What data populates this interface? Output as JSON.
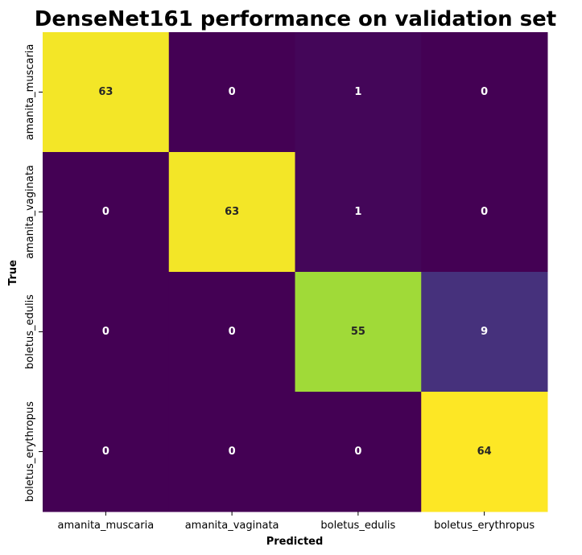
{
  "chart_data": {
    "type": "heatmap",
    "title": "DenseNet161 performance on validation set",
    "xlabel": "Predicted",
    "ylabel": "True",
    "x_categories": [
      "amanita_muscaria",
      "amanita_vaginata",
      "boletus_edulis",
      "boletus_erythropus"
    ],
    "y_categories": [
      "amanita_muscaria",
      "amanita_vaginata",
      "boletus_edulis",
      "boletus_erythropus"
    ],
    "values": [
      [
        63,
        0,
        1,
        0
      ],
      [
        0,
        63,
        1,
        0
      ],
      [
        0,
        0,
        55,
        9
      ],
      [
        0,
        0,
        0,
        64
      ]
    ],
    "value_range": [
      0,
      64
    ],
    "colormap": "viridis",
    "colorbar": false,
    "annotations": true
  }
}
